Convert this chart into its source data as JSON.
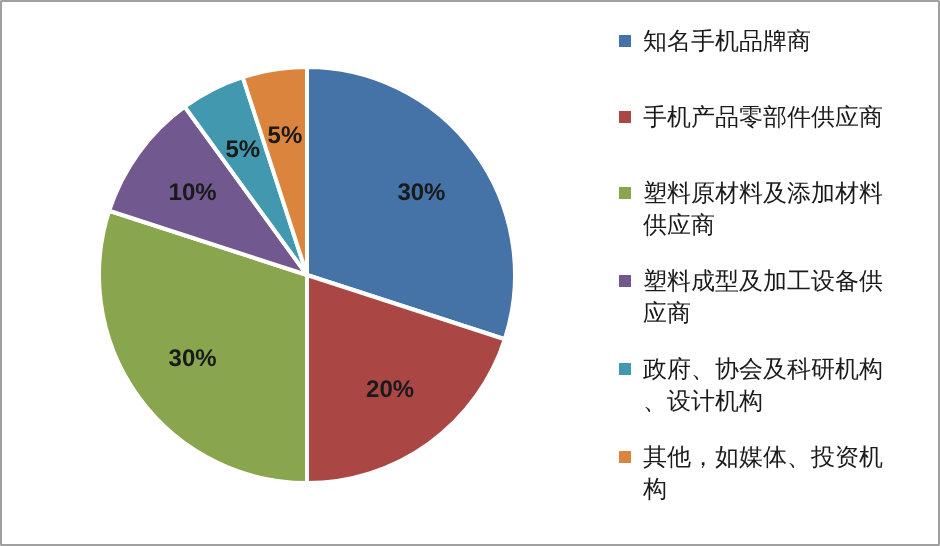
{
  "chart_data": {
    "type": "pie",
    "categories": [
      "知名手机品牌商",
      "手机产品零部件供应商",
      "塑料原材料及添加材料供应商",
      "塑料成型及加工设备供应商",
      "政府、协会及科研机构、设计机构",
      "其他，如媒体、投资机构"
    ],
    "values": [
      30,
      20,
      30,
      10,
      5,
      5
    ],
    "value_labels": [
      "30%",
      "20%",
      "30%",
      "10%",
      "5%",
      "5%"
    ],
    "colors": [
      "#4572a7",
      "#aa4643",
      "#89a54e",
      "#71588f",
      "#4198af",
      "#db843d"
    ],
    "legend": "right"
  }
}
